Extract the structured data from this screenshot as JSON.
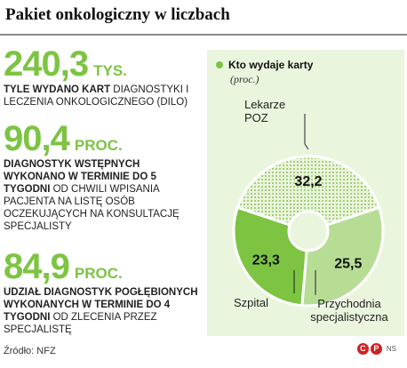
{
  "title": "Pakiet onkologiczny w liczbach",
  "stats": [
    {
      "number": "240,3",
      "unit": "TYS.",
      "desc_bold": "TYLE WYDANO KART",
      "desc_rest": " DIAGNOSTYKI I LECZENIA ONKOLOGICZNEGO (DILO)"
    },
    {
      "number": "90,4",
      "unit": "PROC.",
      "desc_bold": "DIAGNOSTYK WSTĘPNYCH WYKONANO W TERMINIE DO 5 TYGODNI",
      "desc_rest": " OD CHWILI WPISANIA PACJENTA NA LISTĘ OSÓB OCZEKUJĄCYCH NA KONSULTACJĘ SPECJALISTY"
    },
    {
      "number": "84,9",
      "unit": "PROC.",
      "desc_bold": "UDZIAŁ DIAGNOSTYK POGŁĘBIONYCH WYKONANYCH W TERMINIE DO 4 TYGODNI",
      "desc_rest": " OD ZLECENIA PRZEZ SPECJALISTĘ"
    }
  ],
  "chart_data": {
    "type": "pie",
    "title": "Kto wydaje karty",
    "subtitle": "(proc.)",
    "slices": [
      {
        "label": "Lekarze POZ",
        "value": 32.2,
        "value_label": "32,2",
        "color": "#b7dd95",
        "pattern": "dotted"
      },
      {
        "label": "Przychodnia specjalistyczna",
        "value": 25.5,
        "value_label": "25,5",
        "color": "#b7dd95",
        "pattern": "solid"
      },
      {
        "label": "Szpital",
        "value": 23.3,
        "value_label": "23,3",
        "color": "#7cc442",
        "pattern": "solid"
      }
    ],
    "donut": true
  },
  "footer": {
    "source": "Źródło: NFZ",
    "brand_c": "C",
    "brand_p": "P",
    "brand_ns": "NS"
  },
  "colors": {
    "accent": "#7cc442",
    "light_green": "#b7dd95",
    "panel_bg": "#eaf5dd"
  }
}
